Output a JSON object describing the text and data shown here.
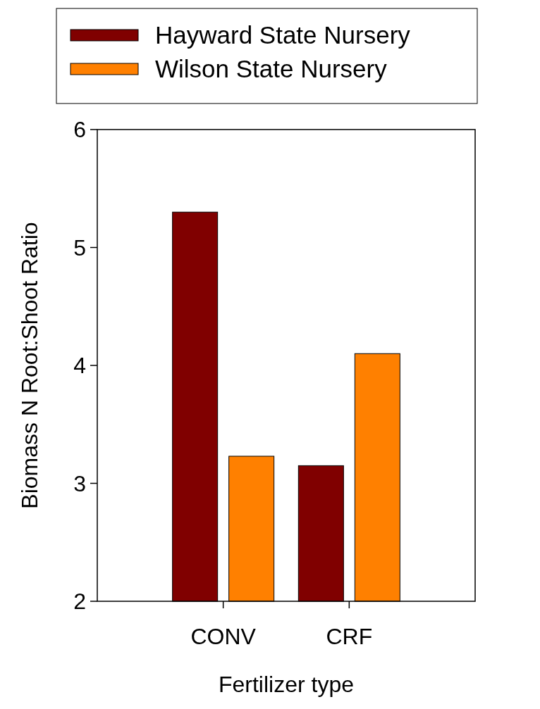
{
  "chart_data": {
    "type": "bar",
    "xlabel": "Fertilizer type",
    "ylabel": "Biomass N Root:Shoot Ratio",
    "categories": [
      "CONV",
      "CRF"
    ],
    "series": [
      {
        "name": "Hayward State Nursery",
        "color": "#800000",
        "values": [
          5.3,
          3.15
        ]
      },
      {
        "name": "Wilson State Nursery",
        "color": "#ff8000",
        "values": [
          3.23,
          4.1
        ]
      }
    ],
    "ylim": [
      2,
      6
    ],
    "yticks": [
      2,
      3,
      4,
      5,
      6
    ],
    "legend": "top",
    "grid": false
  }
}
